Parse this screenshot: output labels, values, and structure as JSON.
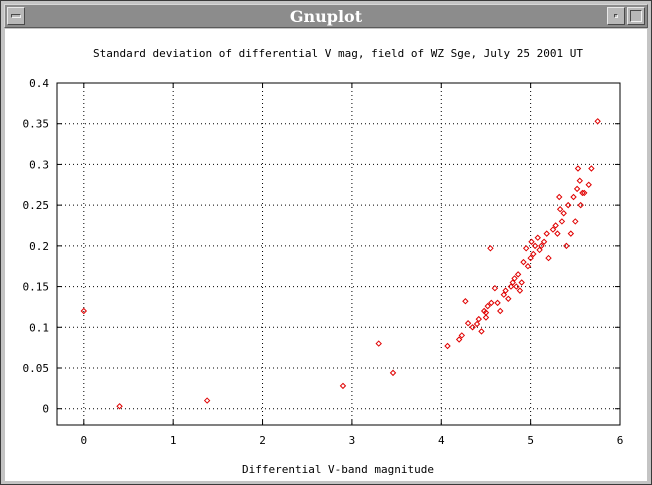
{
  "window": {
    "title": "Gnuplot",
    "icons": [
      "window-menu-icon",
      "minimize-icon",
      "maximize-icon"
    ]
  },
  "chart_data": {
    "type": "scatter",
    "title": "Standard deviation of differential V mag, field of WZ Sge, July 25 2001 UT",
    "xlabel": "Differential V-band magnitude",
    "ylabel": "",
    "xlim": [
      -0.3,
      6
    ],
    "ylim": [
      -0.02,
      0.4
    ],
    "xticks": [
      "0",
      "1",
      "2",
      "3",
      "4",
      "5",
      "6"
    ],
    "yticks": [
      "0",
      "0.05",
      "0.1",
      "0.15",
      "0.2",
      "0.25",
      "0.3",
      "0.35",
      "0.4"
    ],
    "grid": true,
    "grid_style": "dotted",
    "marker": "diamond",
    "color": "#e00000",
    "series": [
      {
        "x": [
          0.0,
          0.4,
          1.38,
          2.9,
          3.3,
          3.46,
          4.07,
          4.2,
          4.23,
          4.27,
          4.3,
          4.35,
          4.4,
          4.42,
          4.45,
          4.48,
          4.5,
          4.5,
          4.52,
          4.55,
          4.56,
          4.6,
          4.63,
          4.66,
          4.7,
          4.72,
          4.75,
          4.78,
          4.8,
          4.82,
          4.84,
          4.86,
          4.88,
          4.9,
          4.92,
          4.95,
          4.97,
          5.0,
          5.01,
          5.03,
          5.05,
          5.08,
          5.1,
          5.12,
          5.15,
          5.18,
          5.2,
          5.25,
          5.28,
          5.3,
          5.32,
          5.33,
          5.35,
          5.37,
          5.4,
          5.42,
          5.45,
          5.48,
          5.5,
          5.52,
          5.53,
          5.55,
          5.56,
          5.58,
          5.6,
          5.65,
          5.68,
          5.75
        ],
        "y": [
          0.12,
          0.003,
          0.01,
          0.028,
          0.08,
          0.044,
          0.077,
          0.085,
          0.09,
          0.132,
          0.105,
          0.1,
          0.104,
          0.11,
          0.095,
          0.12,
          0.112,
          0.118,
          0.126,
          0.197,
          0.13,
          0.148,
          0.13,
          0.12,
          0.14,
          0.145,
          0.135,
          0.15,
          0.155,
          0.16,
          0.15,
          0.165,
          0.145,
          0.155,
          0.18,
          0.197,
          0.175,
          0.185,
          0.205,
          0.19,
          0.2,
          0.21,
          0.195,
          0.2,
          0.205,
          0.215,
          0.185,
          0.22,
          0.225,
          0.215,
          0.26,
          0.245,
          0.23,
          0.24,
          0.2,
          0.25,
          0.215,
          0.26,
          0.23,
          0.27,
          0.295,
          0.28,
          0.25,
          0.265,
          0.265,
          0.275,
          0.295,
          0.353
        ]
      }
    ]
  }
}
